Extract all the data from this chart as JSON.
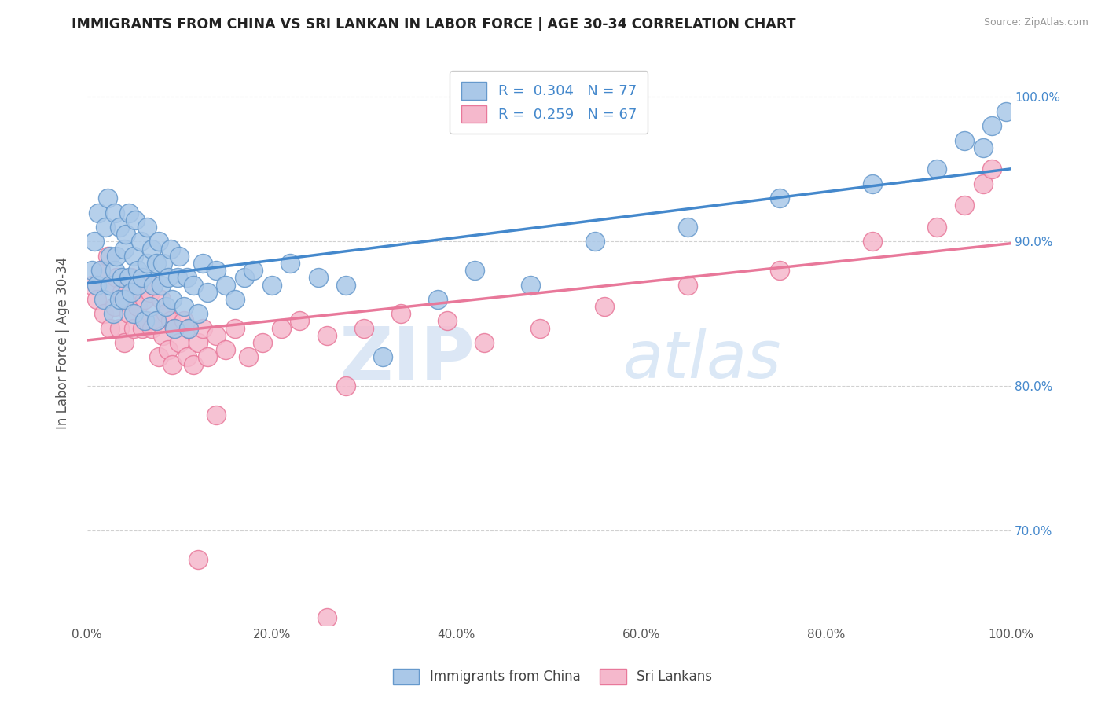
{
  "title": "IMMIGRANTS FROM CHINA VS SRI LANKAN IN LABOR FORCE | AGE 30-34 CORRELATION CHART",
  "source_text": "Source: ZipAtlas.com",
  "ylabel": "In Labor Force | Age 30-34",
  "xlim": [
    0.0,
    1.0
  ],
  "ylim": [
    0.635,
    1.025
  ],
  "x_ticks": [
    0.0,
    0.2,
    0.4,
    0.6,
    0.8,
    1.0
  ],
  "x_tick_labels": [
    "0.0%",
    "20.0%",
    "40.0%",
    "60.0%",
    "80.0%",
    "100.0%"
  ],
  "y_ticks": [
    0.7,
    0.8,
    0.9,
    1.0
  ],
  "y_tick_labels": [
    "70.0%",
    "80.0%",
    "90.0%",
    "100.0%"
  ],
  "china_color": "#aac8e8",
  "china_edge_color": "#6699cc",
  "srilanka_color": "#f5b8cc",
  "srilanka_edge_color": "#e8789a",
  "china_line_color": "#4488cc",
  "srilanka_line_color": "#e8789a",
  "china_R": 0.304,
  "china_N": 77,
  "srilanka_R": 0.259,
  "srilanka_N": 67,
  "legend_label_china": "Immigrants from China",
  "legend_label_srilanka": "Sri Lankans",
  "watermark_zip": "ZIP",
  "watermark_atlas": "atlas",
  "grid_color": "#cccccc",
  "background_color": "#ffffff",
  "title_color": "#222222",
  "axis_label_color": "#555555",
  "tick_label_color_right": "#4488cc",
  "china_scatter_x": [
    0.005,
    0.008,
    0.01,
    0.012,
    0.015,
    0.018,
    0.02,
    0.022,
    0.025,
    0.025,
    0.028,
    0.03,
    0.03,
    0.032,
    0.035,
    0.035,
    0.038,
    0.04,
    0.04,
    0.042,
    0.045,
    0.045,
    0.048,
    0.05,
    0.05,
    0.052,
    0.055,
    0.055,
    0.058,
    0.06,
    0.062,
    0.065,
    0.065,
    0.068,
    0.07,
    0.072,
    0.075,
    0.075,
    0.078,
    0.08,
    0.082,
    0.085,
    0.088,
    0.09,
    0.092,
    0.095,
    0.098,
    0.1,
    0.105,
    0.108,
    0.11,
    0.115,
    0.12,
    0.125,
    0.13,
    0.14,
    0.15,
    0.16,
    0.17,
    0.18,
    0.2,
    0.22,
    0.25,
    0.28,
    0.32,
    0.38,
    0.42,
    0.48,
    0.55,
    0.65,
    0.75,
    0.85,
    0.92,
    0.95,
    0.97,
    0.98,
    0.995
  ],
  "china_scatter_y": [
    0.88,
    0.9,
    0.87,
    0.92,
    0.88,
    0.86,
    0.91,
    0.93,
    0.87,
    0.89,
    0.85,
    0.92,
    0.88,
    0.89,
    0.86,
    0.91,
    0.875,
    0.895,
    0.86,
    0.905,
    0.875,
    0.92,
    0.865,
    0.89,
    0.85,
    0.915,
    0.88,
    0.87,
    0.9,
    0.875,
    0.845,
    0.885,
    0.91,
    0.855,
    0.895,
    0.87,
    0.885,
    0.845,
    0.9,
    0.87,
    0.885,
    0.855,
    0.875,
    0.895,
    0.86,
    0.84,
    0.875,
    0.89,
    0.855,
    0.875,
    0.84,
    0.87,
    0.85,
    0.885,
    0.865,
    0.88,
    0.87,
    0.86,
    0.875,
    0.88,
    0.87,
    0.885,
    0.875,
    0.87,
    0.82,
    0.86,
    0.88,
    0.87,
    0.9,
    0.91,
    0.93,
    0.94,
    0.95,
    0.97,
    0.965,
    0.98,
    0.99
  ],
  "srilanka_scatter_x": [
    0.005,
    0.01,
    0.015,
    0.018,
    0.022,
    0.025,
    0.028,
    0.03,
    0.032,
    0.035,
    0.038,
    0.04,
    0.043,
    0.045,
    0.048,
    0.05,
    0.052,
    0.055,
    0.058,
    0.06,
    0.062,
    0.065,
    0.068,
    0.07,
    0.072,
    0.075,
    0.078,
    0.08,
    0.082,
    0.085,
    0.088,
    0.09,
    0.092,
    0.095,
    0.1,
    0.105,
    0.108,
    0.11,
    0.115,
    0.12,
    0.125,
    0.13,
    0.14,
    0.15,
    0.16,
    0.175,
    0.19,
    0.21,
    0.23,
    0.26,
    0.3,
    0.34,
    0.39,
    0.14,
    0.28,
    0.43,
    0.49,
    0.56,
    0.65,
    0.75,
    0.85,
    0.92,
    0.95,
    0.97,
    0.98,
    0.12,
    0.26
  ],
  "srilanka_scatter_y": [
    0.87,
    0.86,
    0.88,
    0.85,
    0.89,
    0.84,
    0.87,
    0.855,
    0.875,
    0.84,
    0.865,
    0.83,
    0.86,
    0.85,
    0.875,
    0.84,
    0.86,
    0.855,
    0.87,
    0.84,
    0.86,
    0.845,
    0.865,
    0.84,
    0.87,
    0.845,
    0.82,
    0.86,
    0.835,
    0.85,
    0.825,
    0.845,
    0.815,
    0.84,
    0.83,
    0.845,
    0.82,
    0.84,
    0.815,
    0.83,
    0.84,
    0.82,
    0.835,
    0.825,
    0.84,
    0.82,
    0.83,
    0.84,
    0.845,
    0.835,
    0.84,
    0.85,
    0.845,
    0.78,
    0.8,
    0.83,
    0.84,
    0.855,
    0.87,
    0.88,
    0.9,
    0.91,
    0.925,
    0.94,
    0.95,
    0.68,
    0.64
  ]
}
